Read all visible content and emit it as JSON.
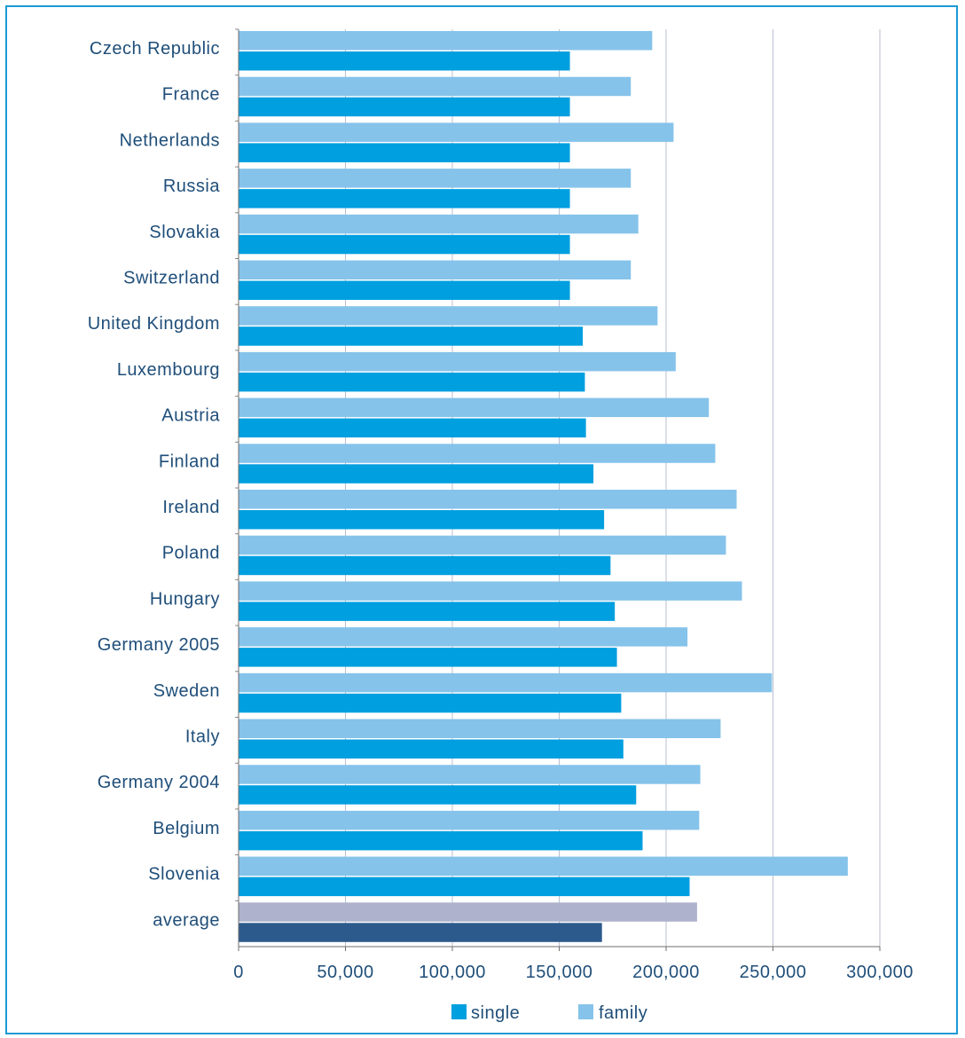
{
  "chart_data": {
    "type": "bar",
    "orientation": "horizontal",
    "categories": [
      "Czech Republic",
      "France",
      "Netherlands",
      "Russia",
      "Slovakia",
      "Switzerland",
      "United Kingdom",
      "Luxembourg",
      "Austria",
      "Finland",
      "Ireland",
      "Poland",
      "Hungary",
      "Germany 2005",
      "Sweden",
      "Italy",
      "Germany 2004",
      "Belgium",
      "Slovenia",
      "average"
    ],
    "series": [
      {
        "name": "single",
        "color": "#009fdf",
        "values": [
          155000,
          155000,
          155000,
          155000,
          155000,
          155000,
          161000,
          162000,
          162500,
          166000,
          171000,
          174000,
          176000,
          177000,
          179000,
          180000,
          186000,
          189000,
          211000,
          170000
        ]
      },
      {
        "name": "family",
        "color": "#85c3ea",
        "values": [
          193500,
          183500,
          203500,
          183500,
          187000,
          183500,
          196000,
          204500,
          220000,
          223000,
          233000,
          228000,
          235500,
          210000,
          249500,
          225500,
          216000,
          215500,
          285000,
          214500
        ]
      }
    ],
    "average_colors": {
      "single": "#2d5a8c",
      "family": "#afb2cc"
    },
    "xlim": [
      0,
      300000
    ],
    "xticks": [
      "0",
      "50,000",
      "100,000",
      "150,000",
      "200,000",
      "250,000",
      "300,000"
    ],
    "grid": "vertical",
    "legend": "bottom",
    "title": "",
    "xlabel": "",
    "ylabel": ""
  }
}
